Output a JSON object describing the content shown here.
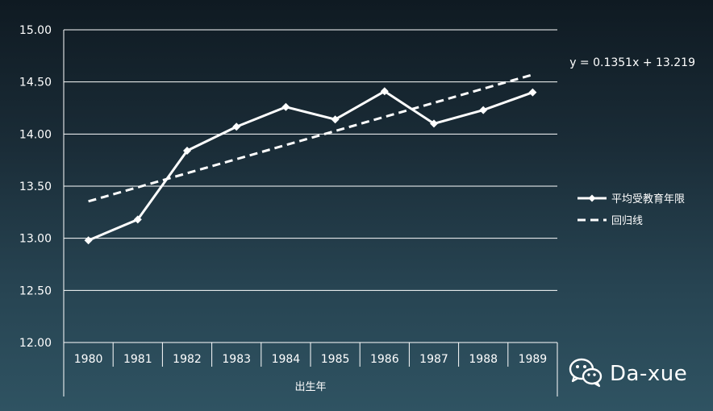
{
  "chart_data": {
    "type": "line",
    "x": [
      "1980",
      "1981",
      "1982",
      "1983",
      "1984",
      "1985",
      "1986",
      "1987",
      "1988",
      "1989"
    ],
    "series": [
      {
        "name": "平均受教育年限",
        "values": [
          12.98,
          13.18,
          13.84,
          14.07,
          14.26,
          14.14,
          14.41,
          14.1,
          14.23,
          14.4
        ],
        "style": "solid",
        "marker": "diamond",
        "color": "#ffffff"
      },
      {
        "name": "回归线",
        "values": [
          13.3541,
          13.4892,
          13.6243,
          13.7594,
          13.8945,
          14.0296,
          14.1647,
          14.2998,
          14.4349,
          14.57
        ],
        "style": "dashed",
        "color": "#ffffff"
      }
    ],
    "xlabel": "出生年",
    "ylabel": "",
    "ylim": [
      12.0,
      15.0
    ],
    "yticks": [
      "12.00",
      "12.50",
      "13.00",
      "13.50",
      "14.00",
      "14.50",
      "15.00"
    ],
    "equation": "y = 0.1351x + 13.219",
    "grid": true,
    "legend_position": "right"
  },
  "watermark": {
    "text": "Da-xue",
    "icon": "wechat-icon"
  }
}
